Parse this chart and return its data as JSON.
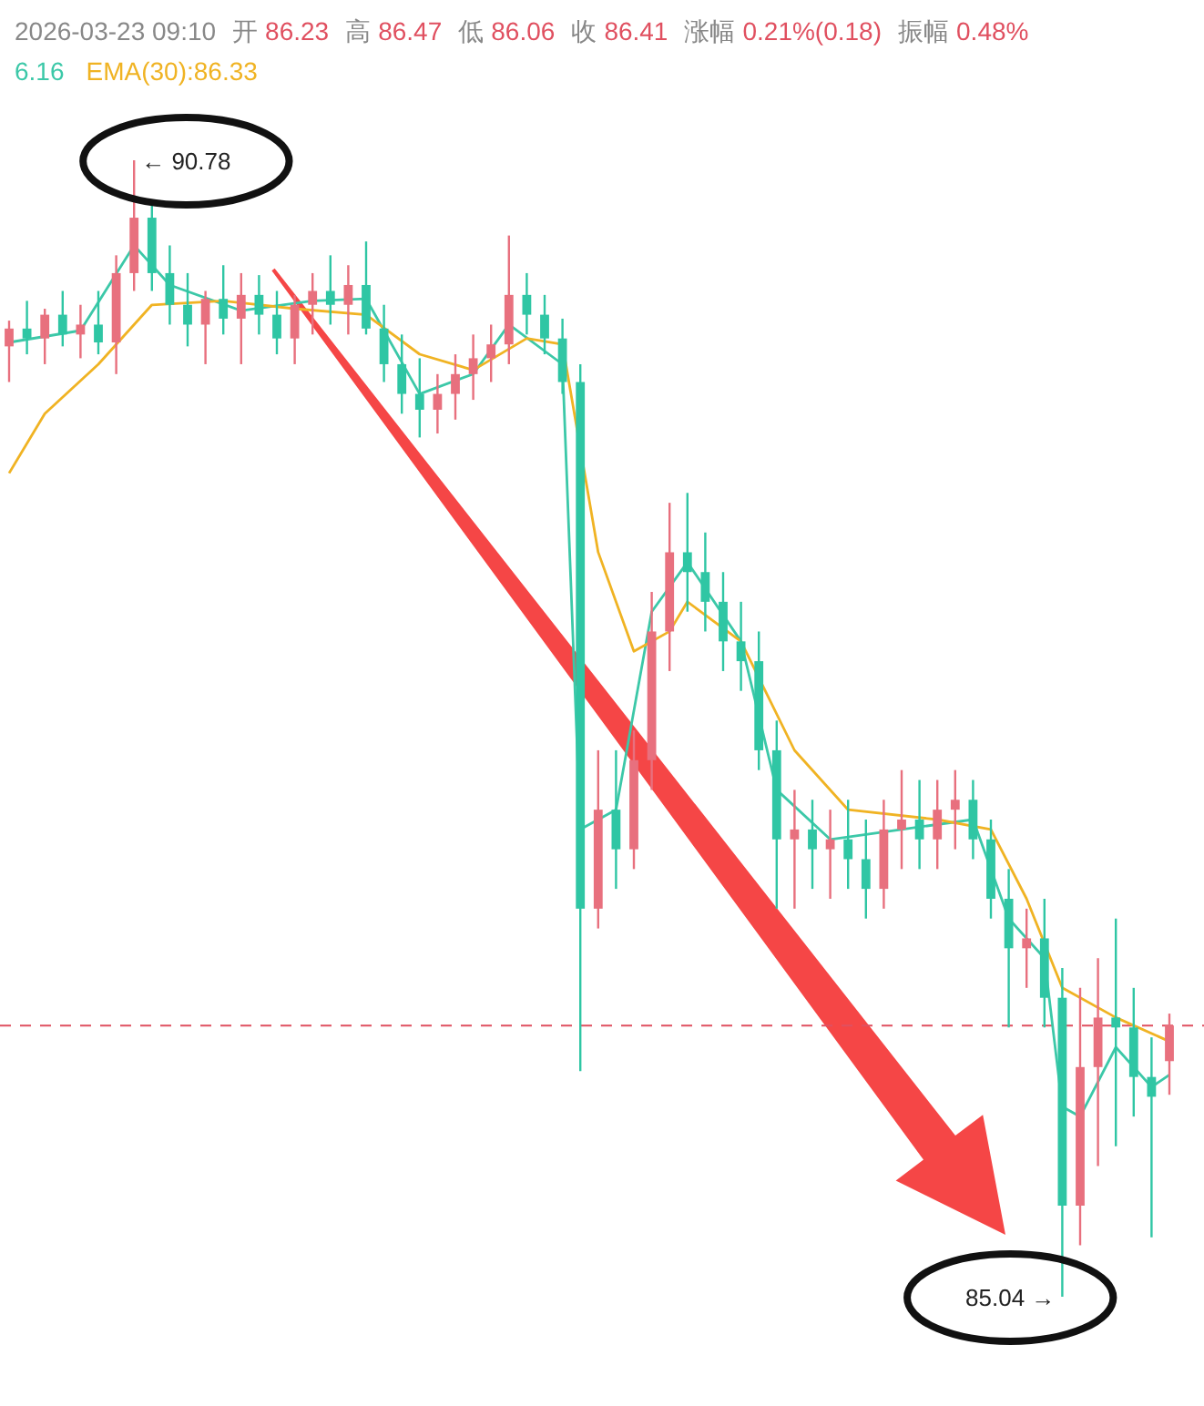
{
  "chart_data": {
    "type": "candlestick",
    "categories": [
      null,
      null,
      null,
      null,
      null,
      null,
      null,
      null,
      null,
      null,
      null,
      null,
      null,
      null,
      null,
      null,
      null,
      null,
      null,
      null,
      null,
      null,
      null,
      null,
      null,
      null,
      null,
      null,
      null,
      null,
      null,
      null,
      null,
      null,
      null,
      null,
      null,
      null,
      null,
      null,
      null,
      null,
      null,
      null,
      null,
      null,
      null,
      null,
      null,
      null,
      null,
      null,
      null,
      null,
      null,
      null,
      null,
      null,
      null,
      null,
      null,
      null,
      null,
      null,
      null,
      null
    ],
    "ohlc": [
      [
        89.84,
        89.97,
        89.66,
        89.93
      ],
      [
        89.93,
        90.07,
        89.8,
        89.88
      ],
      [
        89.88,
        90.03,
        89.75,
        90.0
      ],
      [
        90.0,
        90.12,
        89.84,
        89.9
      ],
      [
        89.9,
        90.05,
        89.78,
        89.95
      ],
      [
        89.95,
        90.12,
        89.8,
        89.86
      ],
      [
        89.86,
        90.3,
        89.7,
        90.21
      ],
      [
        90.21,
        90.78,
        90.12,
        90.49
      ],
      [
        90.49,
        90.58,
        90.12,
        90.21
      ],
      [
        90.21,
        90.35,
        89.95,
        90.05
      ],
      [
        90.05,
        90.21,
        89.84,
        89.95
      ],
      [
        89.95,
        90.12,
        89.75,
        90.08
      ],
      [
        90.08,
        90.25,
        89.9,
        89.98
      ],
      [
        89.98,
        90.21,
        89.75,
        90.1
      ],
      [
        90.1,
        90.2,
        89.9,
        90.0
      ],
      [
        90.0,
        90.12,
        89.8,
        89.88
      ],
      [
        89.88,
        90.1,
        89.75,
        90.05
      ],
      [
        90.05,
        90.21,
        89.9,
        90.12
      ],
      [
        90.12,
        90.3,
        89.95,
        90.05
      ],
      [
        90.05,
        90.25,
        89.9,
        90.15
      ],
      [
        90.15,
        90.37,
        89.9,
        89.93
      ],
      [
        89.93,
        90.05,
        89.66,
        89.75
      ],
      [
        89.75,
        89.9,
        89.5,
        89.6
      ],
      [
        89.6,
        89.78,
        89.38,
        89.52
      ],
      [
        89.52,
        89.7,
        89.4,
        89.6
      ],
      [
        89.6,
        89.8,
        89.47,
        89.7
      ],
      [
        89.7,
        89.9,
        89.57,
        89.78
      ],
      [
        89.78,
        89.95,
        89.66,
        89.85
      ],
      [
        89.85,
        90.4,
        89.75,
        90.1
      ],
      [
        90.1,
        90.21,
        89.9,
        90.0
      ],
      [
        90.0,
        90.1,
        89.8,
        89.88
      ],
      [
        89.88,
        89.98,
        89.6,
        89.66
      ],
      [
        89.66,
        89.75,
        86.18,
        87.0
      ],
      [
        87.0,
        87.8,
        86.9,
        87.5
      ],
      [
        87.5,
        87.8,
        87.1,
        87.3
      ],
      [
        87.3,
        87.9,
        87.2,
        87.75
      ],
      [
        87.75,
        88.6,
        87.6,
        88.4
      ],
      [
        88.4,
        89.05,
        88.2,
        88.8
      ],
      [
        88.8,
        89.1,
        88.5,
        88.7
      ],
      [
        88.7,
        88.9,
        88.4,
        88.55
      ],
      [
        88.55,
        88.7,
        88.2,
        88.35
      ],
      [
        88.35,
        88.55,
        88.1,
        88.25
      ],
      [
        88.25,
        88.4,
        87.7,
        87.8
      ],
      [
        87.8,
        87.95,
        87.0,
        87.35
      ],
      [
        87.35,
        87.6,
        87.0,
        87.4
      ],
      [
        87.4,
        87.55,
        87.1,
        87.3
      ],
      [
        87.3,
        87.5,
        87.05,
        87.35
      ],
      [
        87.35,
        87.55,
        87.1,
        87.25
      ],
      [
        87.25,
        87.45,
        86.95,
        87.1
      ],
      [
        87.1,
        87.55,
        87.0,
        87.4
      ],
      [
        87.4,
        87.7,
        87.2,
        87.45
      ],
      [
        87.45,
        87.65,
        87.2,
        87.35
      ],
      [
        87.35,
        87.65,
        87.2,
        87.5
      ],
      [
        87.5,
        87.7,
        87.3,
        87.55
      ],
      [
        87.55,
        87.65,
        87.25,
        87.35
      ],
      [
        87.35,
        87.45,
        86.95,
        87.05
      ],
      [
        87.05,
        87.2,
        86.4,
        86.8
      ],
      [
        86.8,
        87.0,
        86.6,
        86.85
      ],
      [
        86.85,
        87.05,
        86.4,
        86.55
      ],
      [
        86.55,
        86.7,
        85.04,
        85.5
      ],
      [
        85.5,
        86.6,
        85.3,
        86.2
      ],
      [
        86.2,
        86.75,
        85.7,
        86.45
      ],
      [
        86.45,
        86.95,
        85.8,
        86.4
      ],
      [
        86.4,
        86.6,
        85.95,
        86.15
      ],
      [
        86.15,
        86.35,
        85.34,
        86.05
      ],
      [
        86.23,
        86.47,
        86.06,
        86.41
      ]
    ],
    "colors": [
      "#e8707e",
      "#2fc6a4",
      "#e8707e",
      "#2fc6a4",
      "#e8707e",
      "#2fc6a4",
      "#e8707e",
      "#e8707e",
      "#2fc6a4",
      "#2fc6a4",
      "#2fc6a4",
      "#e8707e",
      "#2fc6a4",
      "#e8707e",
      "#2fc6a4",
      "#2fc6a4",
      "#e8707e",
      "#e8707e",
      "#2fc6a4",
      "#e8707e",
      "#2fc6a4",
      "#2fc6a4",
      "#2fc6a4",
      "#2fc6a4",
      "#e8707e",
      "#e8707e",
      "#e8707e",
      "#e8707e",
      "#e8707e",
      "#2fc6a4",
      "#2fc6a4",
      "#2fc6a4",
      "#2fc6a4",
      "#e8707e",
      "#2fc6a4",
      "#e8707e",
      "#e8707e",
      "#e8707e",
      "#2fc6a4",
      "#2fc6a4",
      "#2fc6a4",
      "#2fc6a4",
      "#2fc6a4",
      "#2fc6a4",
      "#e8707e",
      "#2fc6a4",
      "#e8707e",
      "#2fc6a4",
      "#2fc6a4",
      "#e8707e",
      "#e8707e",
      "#2fc6a4",
      "#e8707e",
      "#e8707e",
      "#2fc6a4",
      "#2fc6a4",
      "#2fc6a4",
      "#e8707e",
      "#2fc6a4",
      "#2fc6a4",
      "#e8707e",
      "#e8707e",
      "#2fc6a4",
      "#2fc6a4",
      "#2fc6a4",
      "#e8707e"
    ],
    "series": [
      {
        "type": "line",
        "name": "6.16",
        "color": "#3cc8a8",
        "values": [
          89.86,
          null,
          null,
          null,
          89.92,
          null,
          null,
          90.35,
          null,
          90.15,
          null,
          null,
          null,
          90.02,
          null,
          null,
          null,
          90.07,
          null,
          null,
          90.08,
          null,
          null,
          89.6,
          null,
          null,
          89.7,
          null,
          89.95,
          null,
          null,
          89.75,
          87.4,
          null,
          87.5,
          null,
          88.5,
          null,
          88.75,
          null,
          null,
          88.35,
          null,
          87.6,
          null,
          null,
          87.35,
          null,
          null,
          null,
          87.4,
          null,
          null,
          null,
          87.45,
          null,
          86.95,
          null,
          86.75,
          86.0,
          85.95,
          null,
          86.3,
          null,
          86.1,
          86.16
        ]
      },
      {
        "type": "line",
        "name": "EMA(30):86.33",
        "color": "#f0b323",
        "values": [
          89.2,
          null,
          89.5,
          null,
          null,
          89.75,
          null,
          null,
          90.05,
          null,
          null,
          null,
          90.07,
          null,
          null,
          null,
          90.03,
          null,
          null,
          null,
          90.0,
          null,
          null,
          89.8,
          null,
          null,
          89.72,
          null,
          null,
          89.88,
          null,
          89.85,
          null,
          88.8,
          null,
          88.3,
          null,
          88.4,
          88.55,
          null,
          null,
          88.35,
          null,
          null,
          87.8,
          null,
          null,
          87.5,
          null,
          null,
          null,
          null,
          87.45,
          null,
          null,
          87.4,
          null,
          87.05,
          null,
          86.6,
          null,
          null,
          86.45,
          null,
          null,
          86.33
        ]
      }
    ],
    "ref_lines": [
      {
        "axis": "y",
        "value": 86.41,
        "color": "#e05060",
        "line_style": "dashed"
      }
    ],
    "annotations": [
      "2026-03-23 09:10",
      "开",
      "86.23",
      "高",
      "86.47",
      "低",
      "86.06",
      "收",
      "86.41",
      "涨幅",
      "0.21%(0.18)",
      "振幅",
      "0.48%",
      "← 90.78",
      "85.04 →"
    ]
  }
}
